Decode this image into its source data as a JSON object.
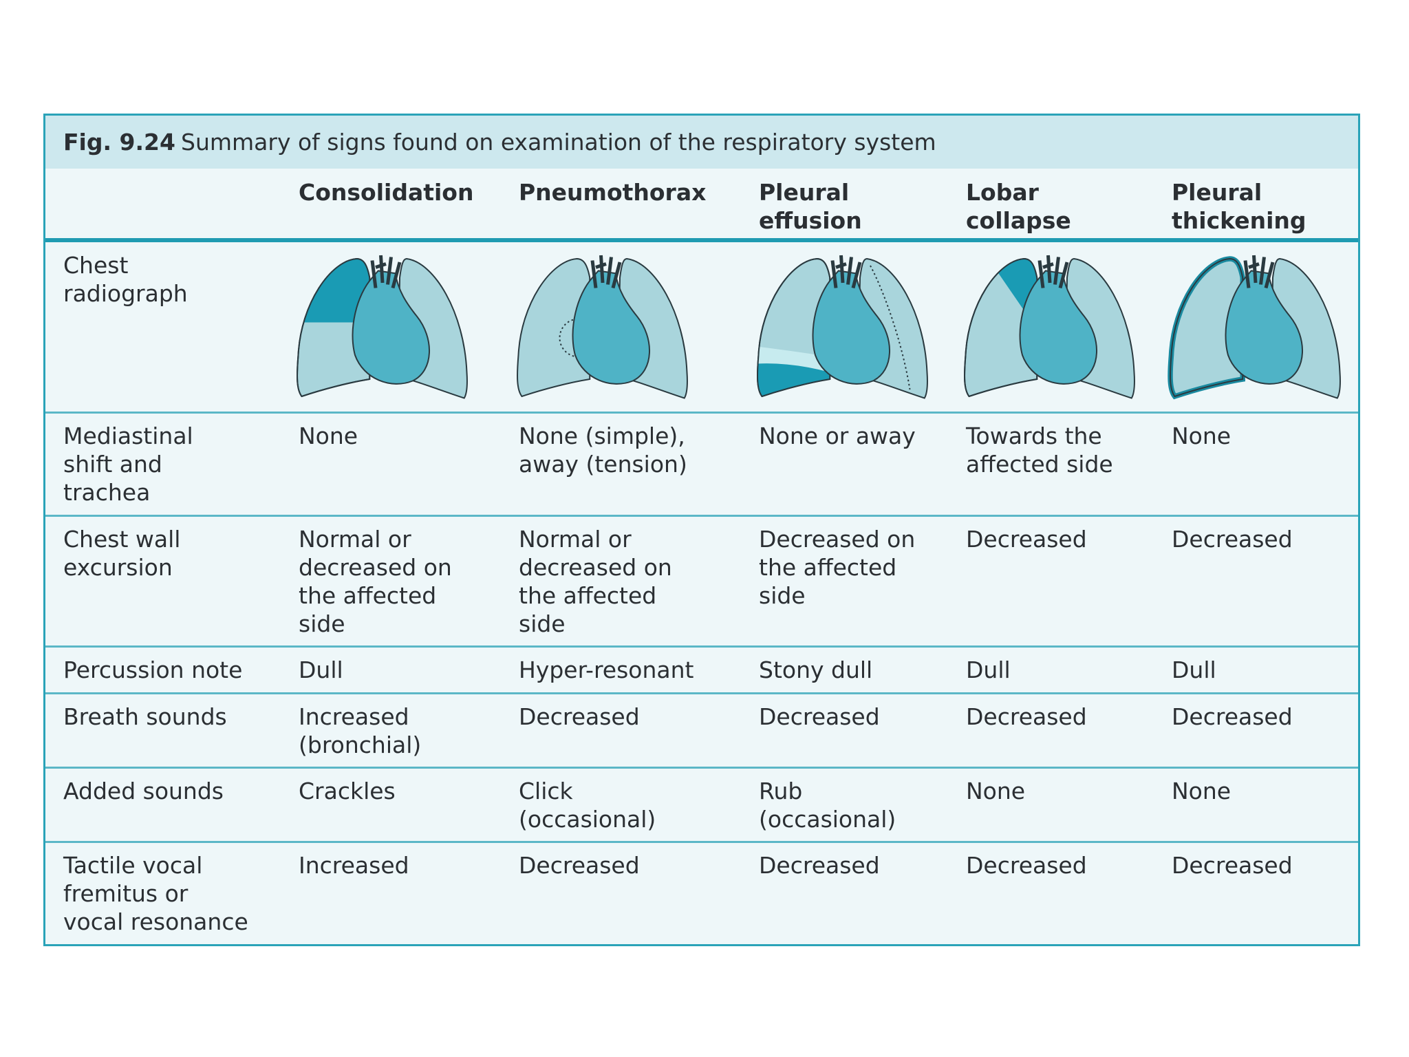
{
  "figure": {
    "label": "Fig. 9.24",
    "caption": "Summary of signs found on examination of the respiratory system"
  },
  "table": {
    "columns": [
      "Consolidation",
      "Pneumothorax",
      "Pleural effusion",
      "Lobar collapse",
      "Pleural thickening"
    ],
    "rows": [
      {
        "label": "Chest radiograph"
      },
      {
        "label": "Mediastinal shift and trachea",
        "cells": [
          "None",
          "None (simple), away (tension)",
          "None or away",
          "Towards the affected side",
          "None"
        ]
      },
      {
        "label": "Chest wall excursion",
        "cells": [
          "Normal or decreased on the affected side",
          "Normal or decreased on the affected side",
          "Decreased on the affected side",
          "Decreased",
          "Decreased"
        ]
      },
      {
        "label": "Percussion note",
        "cells": [
          "Dull",
          "Hyper-resonant",
          "Stony dull",
          "Dull",
          "Dull"
        ]
      },
      {
        "label": "Breath sounds",
        "cells": [
          "Increased (bronchial)",
          "Decreased",
          "Decreased",
          "Decreased",
          "Decreased"
        ]
      },
      {
        "label": "Added sounds",
        "cells": [
          "Crackles",
          "Click (occasional)",
          "Rub (occasional)",
          "None",
          "None"
        ]
      },
      {
        "label": "Tactile vocal fremitus or vocal resonance",
        "cells": [
          "Increased",
          "Decreased",
          "Decreased",
          "Decreased",
          "Decreased"
        ]
      }
    ]
  }
}
